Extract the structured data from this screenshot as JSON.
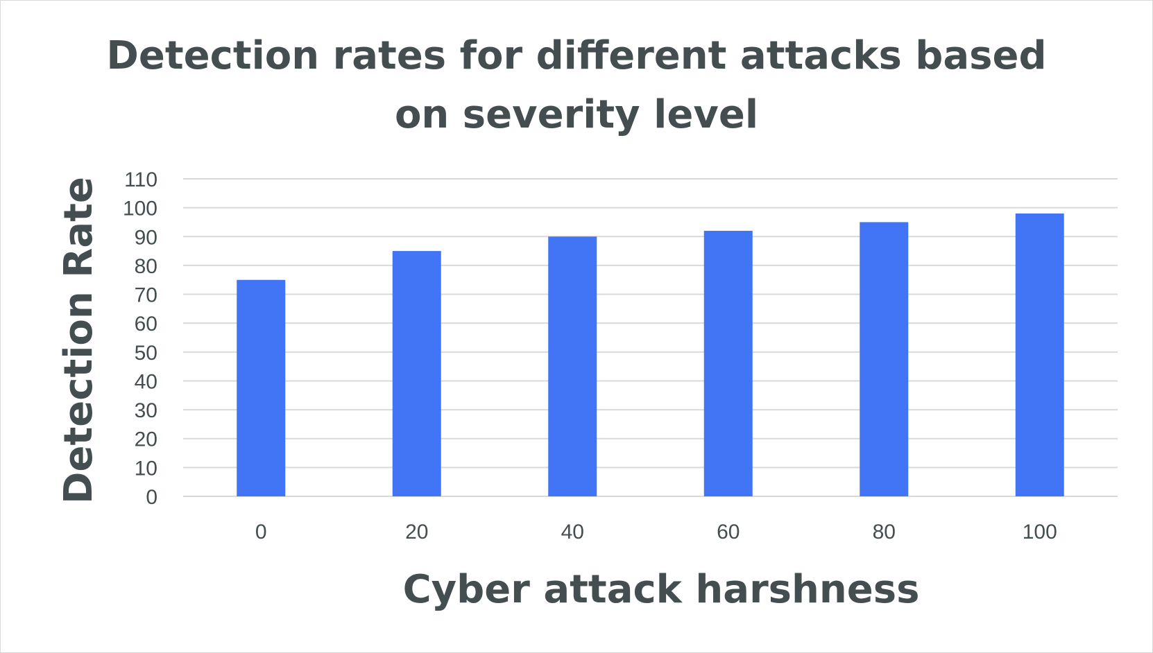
{
  "chart_data": {
    "type": "bar",
    "title_lines": [
      "Detection rates for different attacks based",
      "on severity level"
    ],
    "xlabel": "Cyber attack harshness",
    "ylabel": "Detection Rate",
    "categories": [
      "0",
      "20",
      "40",
      "60",
      "80",
      "100"
    ],
    "values": [
      75,
      85,
      90,
      92,
      95,
      98
    ],
    "ylim": [
      0,
      110
    ],
    "yticks": [
      0,
      10,
      20,
      30,
      40,
      50,
      60,
      70,
      80,
      90,
      100,
      110
    ],
    "grid": true,
    "legend": "none",
    "bar_color": "#4275f5"
  }
}
